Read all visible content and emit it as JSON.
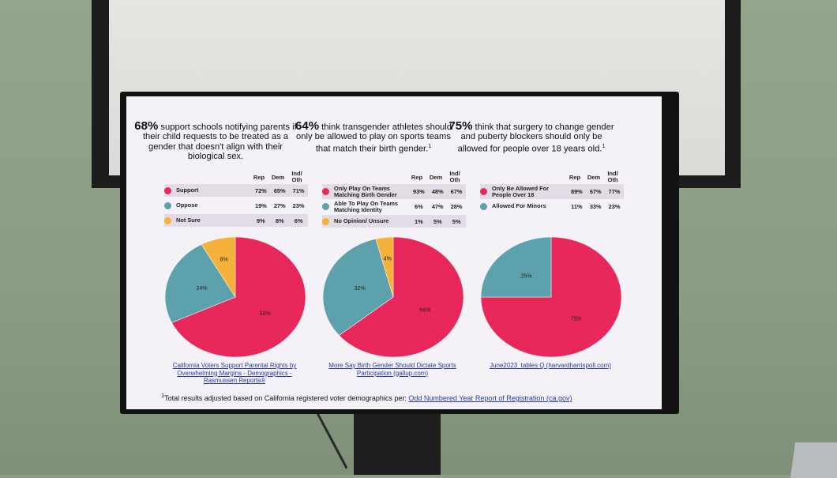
{
  "colors": {
    "support": "#e8285a",
    "oppose": "#5da1ad",
    "unsure": "#f6b13a"
  },
  "header": {
    "rep": "Rep",
    "dem": "Dem",
    "ind": "Ind/",
    "oth": "Oth"
  },
  "charts": [
    {
      "headline_pct": "68%",
      "headline_text": " support schools notifying parents if their child requests to be treated as a gender that doesn't align with their biological sex.",
      "sup": "",
      "rows": [
        {
          "label": "Support",
          "rep": "72%",
          "dem": "65%",
          "ind": "71%"
        },
        {
          "label": "Oppose",
          "rep": "19%",
          "dem": "27%",
          "ind": "23%"
        },
        {
          "label": "Not Sure",
          "rep": "9%",
          "dem": "8%",
          "ind": "6%"
        }
      ],
      "source": "California Voters Support Parental Rights by Overwhelming Margins - Demographics - Rasmussen Reports®"
    },
    {
      "headline_pct": "64%",
      "headline_text": " think transgender athletes should only be allowed to play on sports teams that match their birth gender.",
      "sup": "1",
      "rows": [
        {
          "label": "Only Play On Teams Matching Birth Gender",
          "rep": "93%",
          "dem": "48%",
          "ind": "67%"
        },
        {
          "label": "Able To Play On Teams Matching Identity",
          "rep": "6%",
          "dem": "47%",
          "ind": "28%"
        },
        {
          "label": "No Opinion/ Unsure",
          "rep": "1%",
          "dem": "5%",
          "ind": "5%"
        }
      ],
      "source": "More Say Birth Gender Should Dictate Sports Participation (gallup.com)"
    },
    {
      "headline_pct": "75%",
      "headline_text": " think that surgery to change gender and puberty blockers should only be allowed for people over 18 years old.",
      "sup": "1",
      "rows": [
        {
          "label": "Only Be Allowed For People Over 18",
          "rep": "89%",
          "dem": "67%",
          "ind": "77%"
        },
        {
          "label": "Allowed For Minors",
          "rep": "11%",
          "dem": "33%",
          "ind": "23%"
        }
      ],
      "source": "June2023_tables Q (harvardharrispoll.com)"
    }
  ],
  "chart_data": [
    {
      "type": "pie",
      "title": "68% support schools notifying parents",
      "categories": [
        "Support",
        "Oppose",
        "Not Sure"
      ],
      "values": [
        68,
        24,
        8
      ],
      "labels": [
        "68%",
        "24%",
        "8%"
      ],
      "legend": [
        "Support",
        "Oppose",
        "Not Sure"
      ]
    },
    {
      "type": "pie",
      "title": "64% think transgender athletes should only play on teams matching birth gender",
      "categories": [
        "Only Play On Teams Matching Birth Gender",
        "Able To Play On Teams Matching Identity",
        "No Opinion/ Unsure"
      ],
      "values": [
        64,
        32,
        4
      ],
      "labels": [
        "64%",
        "32%",
        "4%"
      ]
    },
    {
      "type": "pie",
      "title": "75% think surgery and puberty blockers only for people over 18",
      "categories": [
        "Only Be Allowed For People Over 18",
        "Allowed For Minors"
      ],
      "values": [
        75,
        25
      ],
      "labels": [
        "75%",
        "25%"
      ]
    }
  ],
  "footnote": {
    "sup": "1",
    "text": "Total results adjusted based on California registered voter demographics per: ",
    "link": "Odd Numbered Year Report of Registration (ca.gov)"
  }
}
